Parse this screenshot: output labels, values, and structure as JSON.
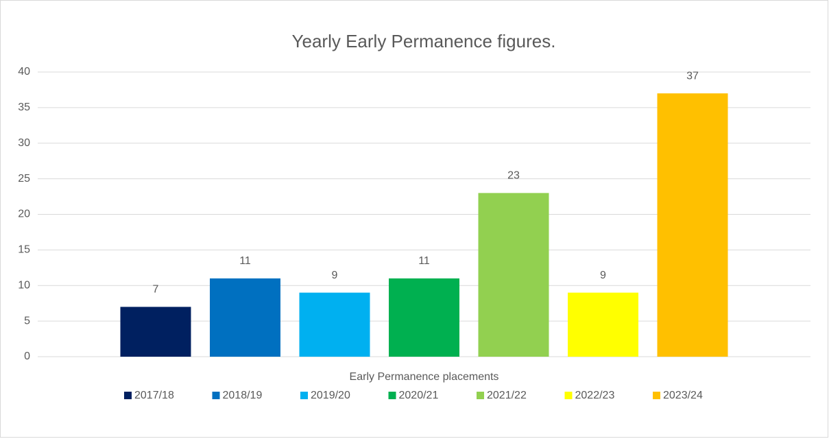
{
  "chart_data": {
    "type": "bar",
    "title": "Yearly Early Permanence figures.",
    "categories": [
      "Early Permanence placements"
    ],
    "series": [
      {
        "name": "2017/18",
        "color": "#002060",
        "values": [
          7
        ]
      },
      {
        "name": "2018/19",
        "color": "#0070c0",
        "values": [
          11
        ]
      },
      {
        "name": "2019/20",
        "color": "#00b0f0",
        "values": [
          9
        ]
      },
      {
        "name": "2020/21",
        "color": "#00b050",
        "values": [
          11
        ]
      },
      {
        "name": "2021/22",
        "color": "#92d050",
        "values": [
          23
        ]
      },
      {
        "name": "2022/23",
        "color": "#ffff00",
        "values": [
          9
        ]
      },
      {
        "name": "2023/24",
        "color": "#ffc000",
        "values": [
          37
        ]
      }
    ],
    "ylim": [
      0,
      40
    ],
    "yticks": [
      0,
      5,
      10,
      15,
      20,
      25,
      30,
      35,
      40
    ],
    "grid": true,
    "legend": "bottom"
  }
}
